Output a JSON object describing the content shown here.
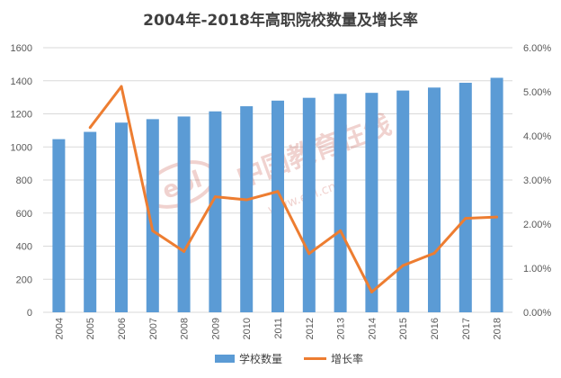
{
  "chart_data": {
    "type": "bar",
    "title": "2004年-2018年高职院校数量及增长率",
    "categories": [
      "2004",
      "2005",
      "2006",
      "2007",
      "2008",
      "2009",
      "2010",
      "2011",
      "2012",
      "2013",
      "2014",
      "2015",
      "2016",
      "2017",
      "2018"
    ],
    "series": [
      {
        "name": "学校数量",
        "type": "bar",
        "axis": "left",
        "color": "#5B9BD5",
        "values": [
          1047,
          1091,
          1147,
          1168,
          1184,
          1215,
          1246,
          1280,
          1297,
          1321,
          1327,
          1341,
          1359,
          1388,
          1418
        ]
      },
      {
        "name": "增长率",
        "type": "line",
        "axis": "right",
        "color": "#ED7D31",
        "values": [
          null,
          0.0419,
          0.0512,
          0.0185,
          0.0138,
          0.0262,
          0.0255,
          0.0274,
          0.0133,
          0.0185,
          0.0046,
          0.0106,
          0.0134,
          0.0213,
          0.0216
        ]
      }
    ],
    "y_left": {
      "min": 0,
      "max": 1600,
      "ticks": [
        "0",
        "200",
        "400",
        "600",
        "800",
        "1000",
        "1200",
        "1400",
        "1600"
      ]
    },
    "y_right": {
      "min": 0,
      "max": 0.06,
      "ticks": [
        "0.00%",
        "1.00%",
        "2.00%",
        "3.00%",
        "4.00%",
        "5.00%",
        "6.00%"
      ]
    },
    "grid": true,
    "legend_position": "bottom"
  },
  "watermark": {
    "text": "中国教育在线",
    "url_text": "www.eol.cn",
    "logo_text": "eol"
  }
}
